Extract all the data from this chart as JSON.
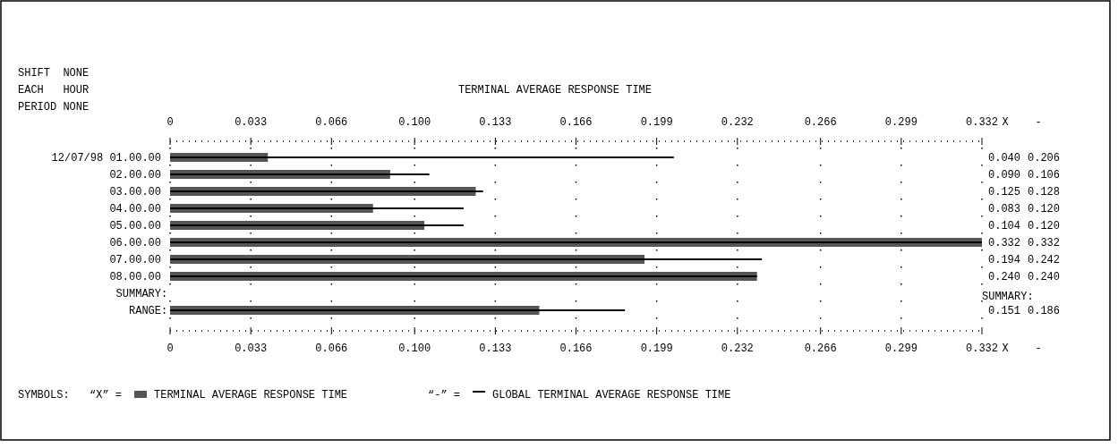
{
  "chart_data": {
    "type": "bar",
    "orientation": "horizontal",
    "title": "TERMINAL AVERAGE RESPONSE TIME",
    "categories": [
      "12/07/98 01.00.00",
      "02.00.00",
      "03.00.00",
      "04.00.00",
      "05.00.00",
      "06.00.00",
      "07.00.00",
      "08.00.00",
      "SUMMARY",
      "RANGE"
    ],
    "series": [
      {
        "name": "TERMINAL AVERAGE RESPONSE TIME",
        "color": "#555555",
        "values": [
          0.04,
          0.09,
          0.125,
          0.083,
          0.104,
          0.332,
          0.194,
          0.24,
          null,
          0.151
        ],
        "value_labels": [
          "0.040",
          "0.090",
          "0.125",
          "0.083",
          "0.104",
          "0.332",
          "0.194",
          "0.240",
          null,
          "0.151"
        ]
      },
      {
        "name": "GLOBAL TERMINAL AVERAGE RESPONSE TIME",
        "color": "#000000",
        "values": [
          0.206,
          0.106,
          0.128,
          0.12,
          0.12,
          0.332,
          0.242,
          0.24,
          null,
          0.186
        ],
        "value_labels": [
          "0.206",
          "0.106",
          "0.128",
          "0.120",
          "0.120",
          "0.332",
          "0.242",
          "0.240",
          null,
          "0.186"
        ]
      }
    ],
    "xlim": [
      0,
      0.332
    ],
    "xticks": [
      0,
      0.033,
      0.066,
      {
        "value": 0.1,
        "label": "0.100"
      },
      0.133,
      0.166,
      0.199,
      0.232,
      0.266,
      0.299,
      0.332
    ],
    "x2lim": [
      0,
      0.332
    ],
    "x2ticks": [
      0,
      0.033,
      0.066,
      {
        "value": 0.1,
        "label": "0.100"
      },
      0.133,
      0.166,
      0.199,
      0.232,
      0.266,
      0.299,
      0.332
    ],
    "grid": "x",
    "legend": "bottom",
    "legend_title": "SYMBOLS:",
    "annotations": [
      "SHIFT  NONE",
      "EACH   HOUR",
      "PERIOD NONE",
      "X",
      "-",
      "X",
      "-",
      "SUMMARY:",
      "“X” =",
      "“-” =",
      ":",
      ":"
    ]
  }
}
